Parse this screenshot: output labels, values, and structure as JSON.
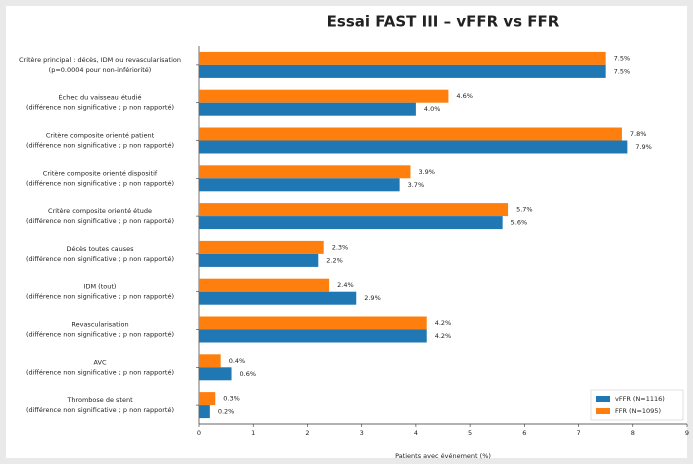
{
  "chart_data": {
    "type": "barh",
    "title": "Essai FAST III – vFFR vs FFR",
    "xlabel": "Patients avec événement (%)",
    "categories": [
      [
        "Critère principal : décès, IDM ou revascularisation",
        "(p=0.0004 pour non-infériorité)"
      ],
      [
        "Échec du vaisseau étudié",
        "(différence non significative ; p non rapporté)"
      ],
      [
        "Critère composite orienté patient",
        "(différence non significative ; p non rapporté)"
      ],
      [
        "Critère composite orienté dispositif",
        "(différence non significative ; p non rapporté)"
      ],
      [
        "Critère composite orienté étude",
        "(différence non significative ; p non rapporté)"
      ],
      [
        "Décès toutes causes",
        "(différence non significative ; p non rapporté)"
      ],
      [
        "IDM (tout)",
        "(différence non significative ; p non rapporté)"
      ],
      [
        "Revascularisation",
        "(différence non significative ; p non rapporté)"
      ],
      [
        "AVC",
        "(différence non significative ; p non rapporté)"
      ],
      [
        "Thrombose de stent",
        "(différence non significative ; p non rapporté)"
      ]
    ],
    "series": [
      {
        "name": "vFFR (N=1116)",
        "color": "#1f77b4",
        "values": [
          7.5,
          4.0,
          7.9,
          3.7,
          5.6,
          2.2,
          2.9,
          4.2,
          0.6,
          0.2
        ],
        "value_labels": [
          "7.5%",
          "4.0%",
          "7.9%",
          "3.7%",
          "5.6%",
          "2.2%",
          "2.9%",
          "4.2%",
          "0.6%",
          "0.2%"
        ]
      },
      {
        "name": "FFR (N=1095)",
        "color": "#ff7f0e",
        "values": [
          7.5,
          4.6,
          7.8,
          3.9,
          5.7,
          2.3,
          2.4,
          4.2,
          0.4,
          0.3
        ],
        "value_labels": [
          "7.5%",
          "4.6%",
          "7.8%",
          "3.9%",
          "5.7%",
          "2.3%",
          "2.4%",
          "4.2%",
          "0.4%",
          "0.3%"
        ]
      }
    ],
    "xlim": [
      0,
      9
    ],
    "xticks": [
      0,
      1,
      2,
      3,
      4,
      5,
      6,
      7,
      8,
      9
    ],
    "legend": "lower right"
  }
}
